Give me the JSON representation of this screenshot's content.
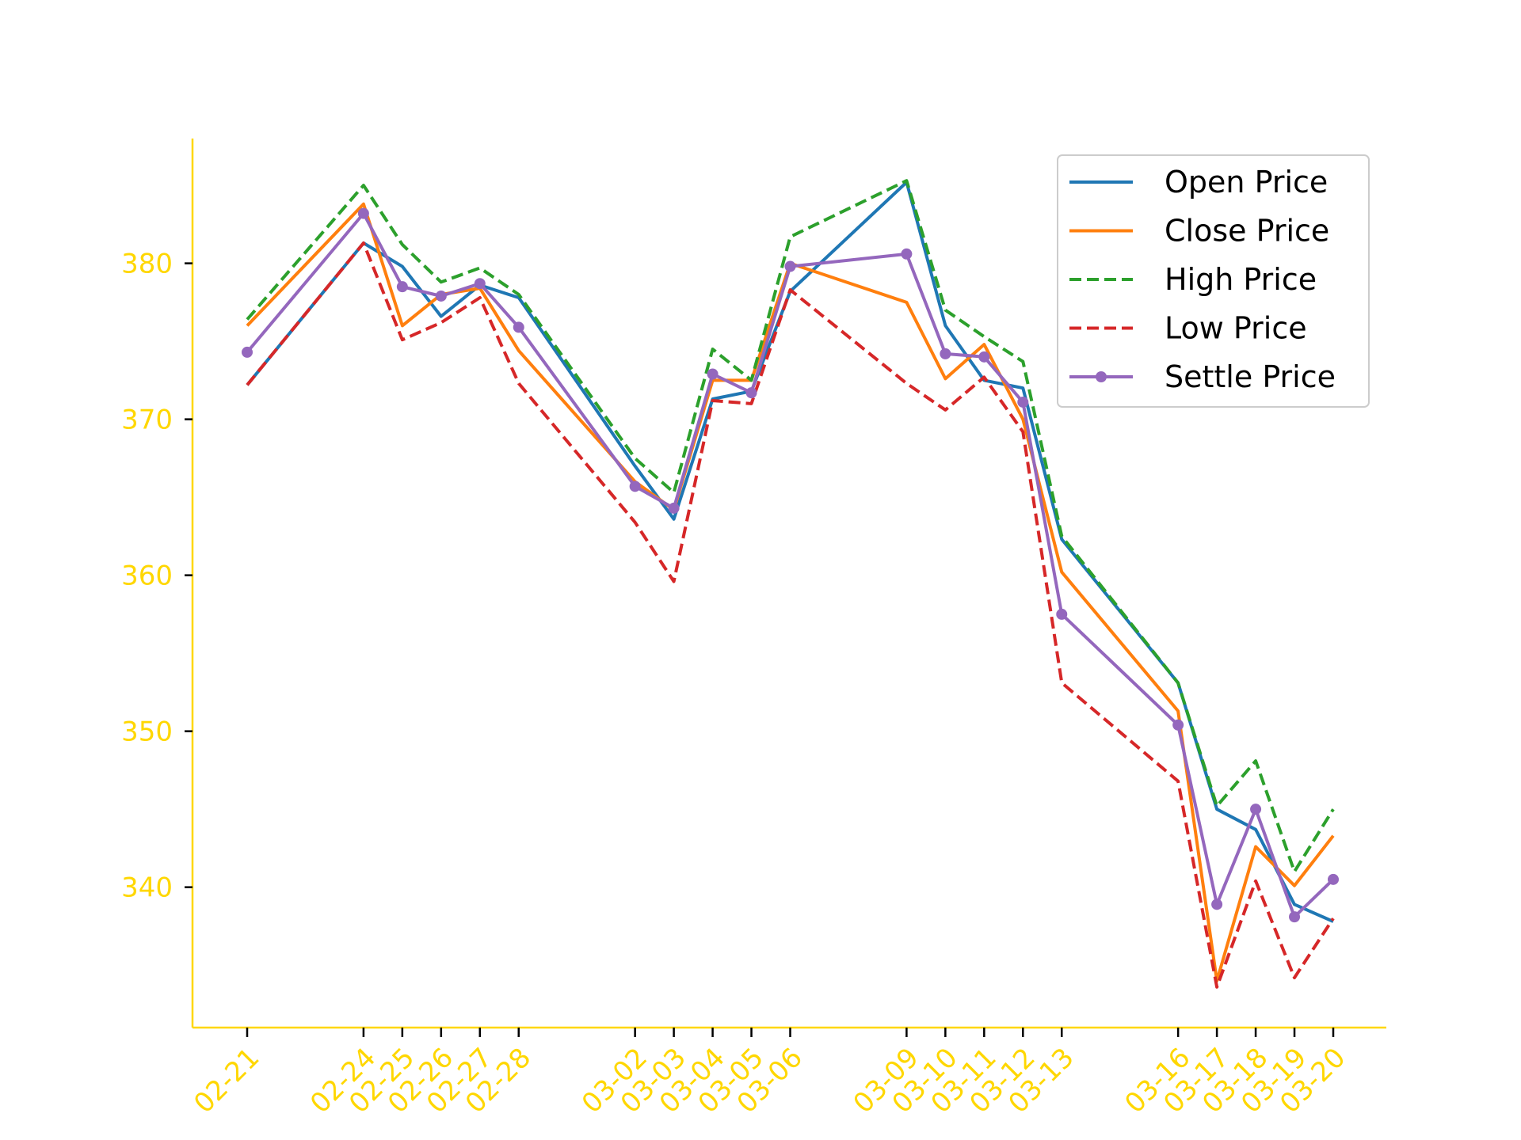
{
  "colors": {
    "axis": "#ffd700",
    "open": "#1f77b4",
    "close": "#ff7f0e",
    "high": "#2ca02c",
    "low": "#d62728",
    "settle": "#9467bd"
  },
  "chart_data": {
    "type": "line",
    "title": "",
    "xlabel": "",
    "ylabel": "",
    "ylim": [
      331,
      388
    ],
    "yticks": [
      340,
      350,
      360,
      370,
      380
    ],
    "grid": false,
    "legend_position": "top-right",
    "x": [
      "02-21",
      "02-24",
      "02-25",
      "02-26",
      "02-27",
      "02-28",
      "03-02",
      "03-03",
      "03-04",
      "03-05",
      "03-06",
      "03-09",
      "03-10",
      "03-11",
      "03-12",
      "03-13",
      "03-16",
      "03-17",
      "03-18",
      "03-19",
      "03-20"
    ],
    "x_day_index": [
      0,
      3,
      4,
      5,
      6,
      7,
      10,
      11,
      12,
      13,
      14,
      17,
      18,
      19,
      20,
      21,
      24,
      25,
      26,
      27,
      28
    ],
    "series": [
      {
        "name": "Open Price",
        "style": "solid",
        "marker": false,
        "color_key": "open",
        "values": [
          372.2,
          381.3,
          379.8,
          376.6,
          378.6,
          377.8,
          367.0,
          363.6,
          371.3,
          371.8,
          378.2,
          385.2,
          376.0,
          372.5,
          372.0,
          362.3,
          353.1,
          345.0,
          343.7,
          338.9,
          337.8
        ]
      },
      {
        "name": "Close Price",
        "style": "solid",
        "marker": false,
        "color_key": "close",
        "values": [
          376.0,
          383.8,
          376.0,
          378.0,
          378.4,
          374.4,
          366.0,
          364.2,
          372.5,
          372.5,
          380.0,
          377.5,
          372.6,
          374.8,
          370.0,
          360.2,
          351.3,
          334.0,
          342.6,
          340.1,
          343.3
        ]
      },
      {
        "name": "High Price",
        "style": "dashed",
        "marker": false,
        "color_key": "high",
        "values": [
          376.4,
          385.0,
          381.2,
          378.8,
          379.7,
          378.0,
          367.5,
          365.3,
          374.5,
          372.5,
          381.7,
          385.3,
          377.0,
          375.3,
          373.7,
          362.5,
          353.1,
          345.2,
          348.1,
          341.0,
          345.0
        ]
      },
      {
        "name": "Low Price",
        "style": "dashed",
        "marker": false,
        "color_key": "low",
        "values": [
          372.2,
          381.3,
          375.1,
          376.2,
          377.8,
          372.3,
          363.4,
          359.6,
          371.2,
          371.0,
          378.3,
          372.3,
          370.6,
          372.7,
          369.2,
          353.1,
          346.8,
          333.6,
          340.4,
          334.2,
          338.0
        ]
      },
      {
        "name": "Settle Price",
        "style": "solid",
        "marker": true,
        "color_key": "settle",
        "values": [
          374.3,
          383.2,
          378.5,
          377.9,
          378.7,
          375.9,
          365.7,
          364.3,
          372.9,
          371.7,
          379.8,
          380.6,
          374.2,
          374.0,
          371.1,
          357.5,
          350.4,
          338.9,
          345.0,
          338.1,
          340.5
        ]
      }
    ]
  }
}
